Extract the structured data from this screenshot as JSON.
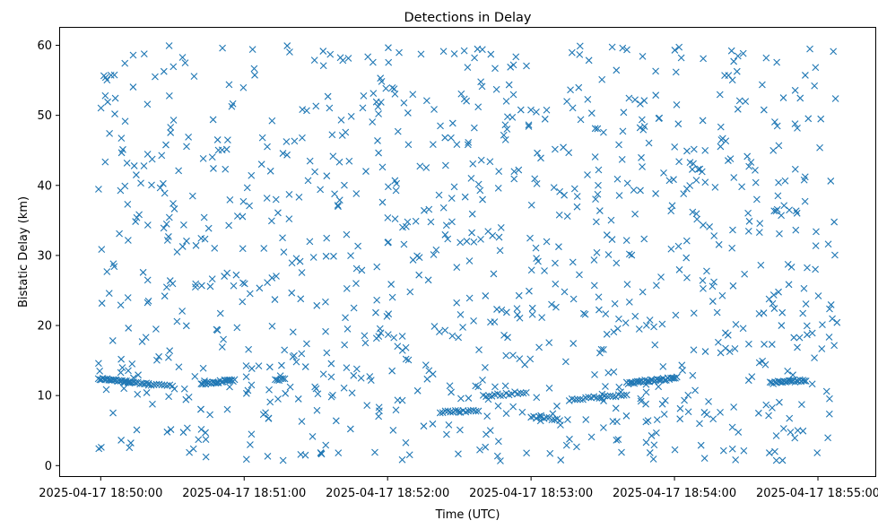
{
  "chart_data": {
    "type": "scatter",
    "title": "Detections in Delay",
    "xlabel": "Time (UTC)",
    "ylabel": "Bistatic Delay (km)",
    "marker": "x",
    "color": "#1f77b4",
    "grid": false,
    "legend": "none",
    "xlim": [
      "2025-04-17 18:49:43",
      "2025-04-17 18:55:24"
    ],
    "ylim": [
      -1.5,
      62.5
    ],
    "xticks": [
      "2025-04-17 18:50:00",
      "2025-04-17 18:51:00",
      "2025-04-17 18:52:00",
      "2025-04-17 18:53:00",
      "2025-04-17 18:54:00",
      "2025-04-17 18:55:00"
    ],
    "yticks": [
      "0",
      "10",
      "20",
      "30",
      "40",
      "50",
      "60"
    ],
    "tracks": [
      {
        "from": "2025-04-17 18:49:59",
        "to": "2025-04-17 18:50:12",
        "delay_start": 12.4,
        "delay_end": 11.9,
        "points": 22
      },
      {
        "from": "2025-04-17 18:50:12",
        "to": "2025-04-17 18:50:20",
        "delay_start": 11.9,
        "delay_end": 11.6,
        "points": 10
      },
      {
        "from": "2025-04-17 18:50:20",
        "to": "2025-04-17 18:50:30",
        "delay_start": 11.6,
        "delay_end": 11.4,
        "points": 10
      },
      {
        "from": "2025-04-17 18:50:42",
        "to": "2025-04-17 18:50:56",
        "delay_start": 11.7,
        "delay_end": 12.2,
        "points": 24
      },
      {
        "from": "2025-04-17 18:51:13",
        "to": "2025-04-17 18:51:17",
        "delay_start": 12.3,
        "delay_end": 12.3,
        "points": 6
      },
      {
        "from": "2025-04-17 18:52:22",
        "to": "2025-04-17 18:52:38",
        "delay_start": 7.7,
        "delay_end": 7.8,
        "points": 16
      },
      {
        "from": "2025-04-17 18:52:40",
        "to": "2025-04-17 18:52:58",
        "delay_start": 9.9,
        "delay_end": 10.5,
        "points": 16
      },
      {
        "from": "2025-04-17 18:53:00",
        "to": "2025-04-17 18:53:12",
        "delay_start": 7.0,
        "delay_end": 6.5,
        "points": 12
      },
      {
        "from": "2025-04-17 18:53:16",
        "to": "2025-04-17 18:53:40",
        "delay_start": 9.4,
        "delay_end": 10.1,
        "points": 22
      },
      {
        "from": "2025-04-17 18:53:40",
        "to": "2025-04-17 18:54:01",
        "delay_start": 11.8,
        "delay_end": 12.5,
        "points": 34
      },
      {
        "from": "2025-04-17 18:54:40",
        "to": "2025-04-17 18:54:55",
        "delay_start": 11.8,
        "delay_end": 12.2,
        "points": 24
      }
    ],
    "random_detections": {
      "from": "2025-04-17 18:49:59",
      "to": "2025-04-17 18:55:08",
      "delay_min": 0.5,
      "delay_max": 60.0,
      "points": 1000,
      "seed": 20250417
    }
  }
}
